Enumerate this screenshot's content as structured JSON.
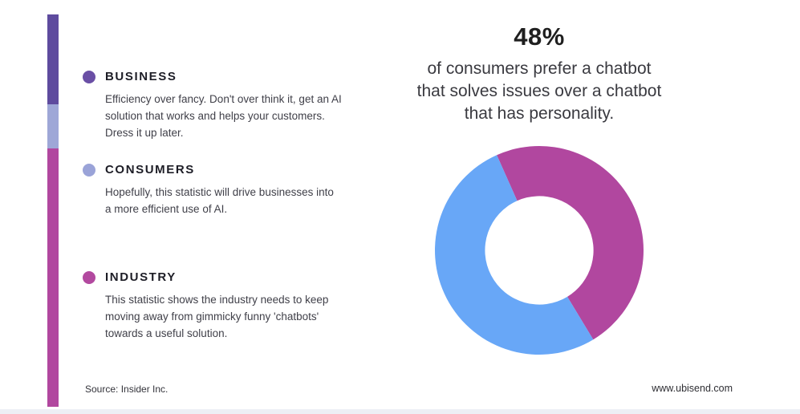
{
  "accent_bar": {
    "colors": [
      "#5e4b9e",
      "#9ea7d7",
      "#b1479f"
    ]
  },
  "left_panel": {
    "sections": [
      {
        "label": "BUSINESS",
        "bullet_color": "#6a4fa5",
        "lines": [
          "Efficiency over fancy. Don't over think it, get an AI",
          "solution that works and helps your customers.",
          "Dress it up later."
        ]
      },
      {
        "label": "CONSUMERS",
        "bullet_color": "#9aa3d8",
        "lines": [
          "Hopefully, this statistic will drive businesses into",
          "a more efficient use of AI."
        ]
      },
      {
        "label": "INDUSTRY",
        "bullet_color": "#b2499f",
        "lines": [
          "This statistic shows the industry needs to keep",
          "moving away from gimmicky funny 'chatbots'",
          "towards a useful solution."
        ]
      }
    ],
    "source": "Source: Insider Inc."
  },
  "right_panel": {
    "stat": "48%",
    "description_lines": [
      "of consumers prefer a chatbot",
      "that solves issues over a chatbot",
      "that has personality."
    ]
  },
  "footer": {
    "website": "www.ubisend.com"
  },
  "chart_data": {
    "type": "pie",
    "donut": true,
    "title": "48%",
    "subtitle": "of consumers prefer a chatbot that solves issues over a chatbot that has personality.",
    "start_angle_deg": -24,
    "inner_radius_ratio": 0.52,
    "slices": [
      {
        "label": "prefer a chatbot that solves issues",
        "value": 48,
        "color": "#b1479f"
      },
      {
        "label": "other",
        "value": 52,
        "color": "#68a7f7"
      }
    ],
    "legend": "none",
    "grid": false
  }
}
